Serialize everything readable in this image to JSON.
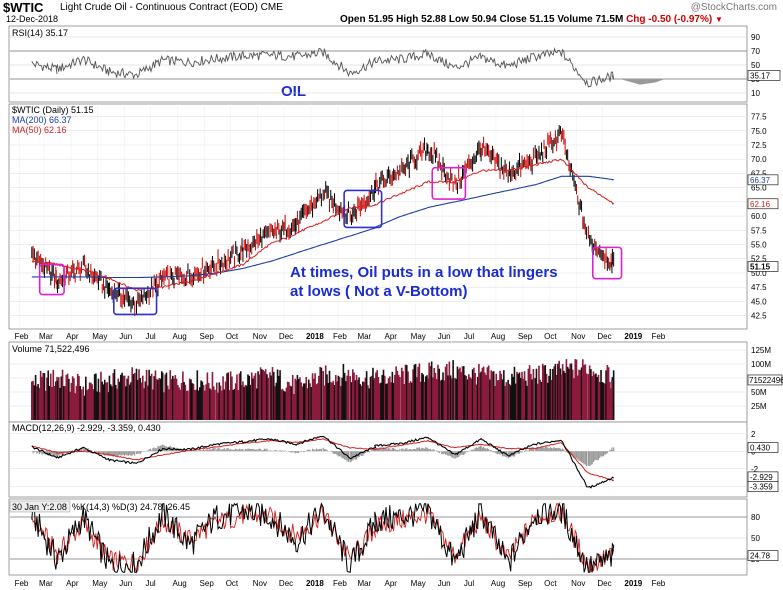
{
  "header": {
    "ticker": "$WTIC",
    "description": "Light Crude Oil - Continuous Contract (EOD)",
    "exchange": "CME",
    "date": "12-Dec-2018",
    "ohlc": "Open 51.95  High 52.88  Low 50.94  Close 51.15  Volume 71.5M",
    "chg": "Chg -0.50 (-0.97%)",
    "source": "@StockCharts.com"
  },
  "annotations": {
    "oil": "OIL",
    "line1": "At times, Oil puts in a low that lingers",
    "line2": "at lows  ( Not a V-Bottom)"
  },
  "colors": {
    "price": "#000000",
    "ma200": "#1f3fa8",
    "ma50": "#d62020",
    "volume": "#8b1a3c",
    "macd": "#000000",
    "signal": "#d62020",
    "hist": "#999999",
    "highlight": "#e020d0",
    "ann": "#1a2bd0"
  },
  "chart_data": [
    {
      "type": "line",
      "panel": "rsi",
      "title": "RSI(14) 35.17",
      "last_value": 35.17,
      "last_label": "35.17",
      "ylim": [
        0,
        100
      ],
      "yticks": [
        90,
        70,
        50,
        30,
        10
      ],
      "levels": [
        70,
        30
      ],
      "x": [
        "2017-02",
        "2017-03",
        "2017-04",
        "2017-05",
        "2017-06",
        "2017-07",
        "2017-08",
        "2017-09",
        "2017-10",
        "2017-11",
        "2017-12",
        "2018-01",
        "2018-02",
        "2018-03",
        "2018-04",
        "2018-05",
        "2018-06",
        "2018-07",
        "2018-08",
        "2018-09",
        "2018-10",
        "2018-11",
        "2018-12"
      ],
      "values": [
        52,
        43,
        58,
        40,
        36,
        57,
        54,
        59,
        63,
        64,
        62,
        68,
        38,
        56,
        58,
        66,
        46,
        61,
        48,
        62,
        68,
        24,
        35
      ]
    },
    {
      "type": "line",
      "panel": "price",
      "title": "$WTIC (Daily) 51.15",
      "ylim": [
        40.5,
        79
      ],
      "yticks": [
        42.5,
        45,
        47.5,
        50,
        52.5,
        55,
        57.5,
        60,
        62.5,
        65,
        67.5,
        70,
        72.5,
        75,
        77.5
      ],
      "x": [
        "2017-02",
        "2017-03",
        "2017-04",
        "2017-05",
        "2017-06",
        "2017-07",
        "2017-08",
        "2017-09",
        "2017-10",
        "2017-11",
        "2017-12",
        "2018-01",
        "2018-02",
        "2018-03",
        "2018-04",
        "2018-05",
        "2018-06",
        "2018-07",
        "2018-08",
        "2018-09",
        "2018-10",
        "2018-11",
        "2018-12"
      ],
      "series": [
        {
          "name": "$WTIC (Daily) 51.15",
          "values": [
            53.5,
            48.5,
            51,
            47,
            44.5,
            49,
            49.5,
            51.5,
            54,
            57,
            58.5,
            64,
            60,
            65,
            68,
            72,
            65.5,
            72,
            67.5,
            70,
            74.5,
            56,
            51.15
          ]
        },
        {
          "name": "MA(200) 66.37",
          "values": [
            49.3,
            49.3,
            49.3,
            49.2,
            49.2,
            49.3,
            49.5,
            50,
            50.8,
            52,
            53.5,
            55,
            56.5,
            58,
            60,
            61.5,
            62.5,
            63.5,
            64.5,
            65.5,
            67,
            67,
            66.37
          ]
        },
        {
          "name": "MA(50) 62.16",
          "values": [
            52,
            51.5,
            50.5,
            49,
            47,
            47.5,
            48.5,
            50,
            51.5,
            55,
            57,
            59,
            61.5,
            62,
            64,
            66,
            66,
            68,
            68,
            69,
            70,
            65,
            62.16
          ]
        }
      ],
      "legend": [
        "MA(200) 66.37",
        "MA(50) 62.16"
      ],
      "last_labels": {
        "ma200": "66.37",
        "ma50": "62.16",
        "close": "51.15"
      }
    },
    {
      "type": "bar",
      "panel": "volume",
      "title": "Volume 71,522,496",
      "last_label": "71522496",
      "ylim": [
        0,
        125
      ],
      "yticks": [
        25,
        50,
        75,
        100,
        125
      ],
      "ytick_labels": [
        "25M",
        "50M",
        "75M",
        "100M",
        "125M"
      ],
      "x": [
        "2017-02",
        "2017-03",
        "2017-04",
        "2017-05",
        "2017-06",
        "2017-07",
        "2017-08",
        "2017-09",
        "2017-10",
        "2017-11",
        "2017-12",
        "2018-01",
        "2018-02",
        "2018-03",
        "2018-04",
        "2018-05",
        "2018-06",
        "2018-07",
        "2018-08",
        "2018-09",
        "2018-10",
        "2018-11",
        "2018-12"
      ],
      "values": [
        65,
        75,
        60,
        70,
        78,
        68,
        72,
        66,
        70,
        80,
        60,
        78,
        82,
        72,
        80,
        85,
        88,
        80,
        75,
        80,
        88,
        95,
        71.5
      ]
    },
    {
      "type": "line",
      "panel": "macd",
      "title": "MACD(12,26,9) -2.929, -3.359, 0.430",
      "ylim": [
        -5,
        3
      ],
      "yticks": [
        2,
        0,
        -2,
        -4
      ],
      "x": [
        "2017-02",
        "2017-03",
        "2017-04",
        "2017-05",
        "2017-06",
        "2017-07",
        "2017-08",
        "2017-09",
        "2017-10",
        "2017-11",
        "2017-12",
        "2018-01",
        "2018-02",
        "2018-03",
        "2018-04",
        "2018-05",
        "2018-06",
        "2018-07",
        "2018-08",
        "2018-09",
        "2018-10",
        "2018-11",
        "2018-12"
      ],
      "series": [
        {
          "name": "MACD",
          "values": [
            0.5,
            -0.8,
            0.4,
            -1,
            -1.4,
            0.3,
            0.2,
            0.8,
            1.1,
            1.4,
            0.8,
            1.8,
            -0.8,
            0.6,
            0.9,
            1.6,
            -0.4,
            1.4,
            -0.5,
            0.8,
            1.3,
            -4.2,
            -2.929
          ]
        },
        {
          "name": "Signal",
          "values": [
            0.6,
            -0.2,
            0,
            -0.4,
            -1,
            -0.4,
            0.1,
            0.5,
            0.9,
            1.2,
            1,
            1.4,
            0.4,
            0.2,
            0.7,
            1.2,
            0.4,
            0.8,
            0.3,
            0.3,
            1,
            -2.5,
            -3.359
          ]
        },
        {
          "name": "Histogram",
          "values": [
            -0.1,
            -0.6,
            0.4,
            -0.6,
            -0.4,
            0.7,
            0.1,
            0.3,
            0.2,
            0.2,
            -0.2,
            0.4,
            -1.2,
            0.4,
            0.2,
            0.4,
            -0.8,
            0.6,
            -0.8,
            0.5,
            0.3,
            -1.7,
            0.43
          ]
        }
      ],
      "last_labels": {
        "hist": "0.430",
        "macd": "-2.929",
        "signal": "-3.359"
      }
    },
    {
      "type": "line",
      "panel": "stochastic",
      "title": "%K(14,3) %D(3) 24.78, 26.45",
      "tooltip": "30 Jan Y:2.08",
      "ylim": [
        0,
        100
      ],
      "yticks": [
        80,
        50,
        20
      ],
      "x": [
        "2017-02",
        "2017-03",
        "2017-04",
        "2017-05",
        "2017-06",
        "2017-07",
        "2017-08",
        "2017-09",
        "2017-10",
        "2017-11",
        "2017-12",
        "2018-01",
        "2018-02",
        "2018-03",
        "2018-04",
        "2018-05",
        "2018-06",
        "2018-07",
        "2018-08",
        "2018-09",
        "2018-10",
        "2018-11",
        "2018-12"
      ],
      "series": [
        {
          "name": "%K",
          "values": [
            85,
            15,
            80,
            10,
            12,
            85,
            40,
            80,
            88,
            82,
            45,
            90,
            10,
            75,
            80,
            90,
            15,
            88,
            12,
            85,
            90,
            5,
            24.78
          ]
        },
        {
          "name": "%D",
          "values": [
            80,
            25,
            70,
            18,
            15,
            75,
            48,
            72,
            82,
            80,
            52,
            85,
            20,
            65,
            75,
            85,
            25,
            80,
            20,
            78,
            88,
            10,
            26.45
          ]
        }
      ],
      "last_label": "24.78"
    }
  ],
  "xaxis": [
    "Feb",
    "Mar",
    "Apr",
    "May",
    "Jun",
    "Jul",
    "Aug",
    "Sep",
    "Oct",
    "Nov",
    "Dec",
    "2018",
    "Feb",
    "Mar",
    "Apr",
    "May",
    "Jun",
    "Jul",
    "Aug",
    "Sep",
    "Oct",
    "Nov",
    "Dec",
    "2019",
    "Feb"
  ],
  "boxes": [
    {
      "label": "magenta",
      "x0": "2017-02-24",
      "x1": "2017-03-24",
      "y0": 46.2,
      "y1": 51.5
    },
    {
      "label": "blue",
      "x0": "2017-05-20",
      "x1": "2017-07-08",
      "y0": 42.7,
      "y1": 47.3
    },
    {
      "label": "blue",
      "x0": "2018-02-08",
      "x1": "2018-03-23",
      "y0": 58,
      "y1": 64.5
    },
    {
      "label": "magenta",
      "x0": "2018-05-20",
      "x1": "2018-06-27",
      "y0": 63,
      "y1": 68.5
    },
    {
      "label": "magenta",
      "x0": "2018-11-20",
      "x1": "2018-12-23",
      "y0": 49,
      "y1": 54.5
    }
  ]
}
